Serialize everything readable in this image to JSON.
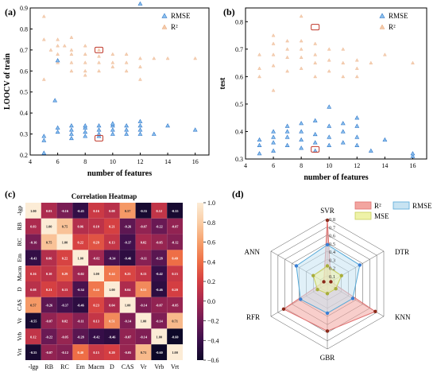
{
  "panels": {
    "a": {
      "label": "(a)"
    },
    "b": {
      "label": "(b)"
    },
    "c": {
      "label": "(c)"
    },
    "d": {
      "label": "(d)"
    }
  },
  "chart_data": [
    {
      "id": "a",
      "type": "scatter",
      "xlabel": "number of features",
      "ylabel": "LOOCV of train",
      "xlim": [
        4,
        17
      ],
      "ylim": [
        0.2,
        0.9
      ],
      "xticks": [
        "4",
        "6",
        "8",
        "10",
        "12",
        "14",
        "16"
      ],
      "yticks": [
        "0.2",
        "0.3",
        "0.4",
        "0.5",
        "0.6",
        "0.7",
        "0.8",
        "0.9"
      ],
      "legend_position": "top-right",
      "colors": {
        "RMSE": "#3a7fd5",
        "R2": "#f0b48a",
        "highlight": "#c0392b"
      },
      "series": [
        {
          "name": "RMSE",
          "marker": "triangle",
          "points": [
            [
              5,
              0.21
            ],
            [
              5,
              0.27
            ],
            [
              5,
              0.29
            ],
            [
              6,
              0.31
            ],
            [
              6,
              0.33
            ],
            [
              7,
              0.28
            ],
            [
              7,
              0.3
            ],
            [
              7,
              0.32
            ],
            [
              7,
              0.34
            ],
            [
              8,
              0.29
            ],
            [
              8,
              0.31
            ],
            [
              8,
              0.33
            ],
            [
              8,
              0.34
            ],
            [
              9,
              0.29
            ],
            [
              9,
              0.3
            ],
            [
              9,
              0.32
            ],
            [
              9,
              0.34
            ],
            [
              10,
              0.3
            ],
            [
              10,
              0.32
            ],
            [
              10,
              0.34
            ],
            [
              10,
              0.35
            ],
            [
              11,
              0.3
            ],
            [
              11,
              0.32
            ],
            [
              11,
              0.34
            ],
            [
              12,
              0.3
            ],
            [
              12,
              0.32
            ],
            [
              12,
              0.34
            ],
            [
              12,
              0.36
            ],
            [
              13,
              0.3
            ],
            [
              14,
              0.34
            ],
            [
              16,
              0.32
            ],
            [
              5.8,
              0.46
            ],
            [
              6,
              0.65
            ],
            [
              12,
              0.92
            ]
          ]
        },
        {
          "name": "R²",
          "marker": "triangle",
          "points": [
            [
              5,
              0.86
            ],
            [
              5,
              0.75
            ],
            [
              5,
              0.56
            ],
            [
              5.5,
              0.7
            ],
            [
              6,
              0.75
            ],
            [
              6,
              0.72
            ],
            [
              6,
              0.68
            ],
            [
              6,
              0.64
            ],
            [
              6.5,
              0.72
            ],
            [
              7,
              0.76
            ],
            [
              7,
              0.7
            ],
            [
              7,
              0.68
            ],
            [
              7,
              0.64
            ],
            [
              7,
              0.6
            ],
            [
              8,
              0.72
            ],
            [
              8,
              0.68
            ],
            [
              8,
              0.64
            ],
            [
              8,
              0.6
            ],
            [
              8,
              0.58
            ],
            [
              9,
              0.7
            ],
            [
              9,
              0.67
            ],
            [
              9,
              0.64
            ],
            [
              9,
              0.6
            ],
            [
              10,
              0.68
            ],
            [
              10,
              0.64
            ],
            [
              10,
              0.62
            ],
            [
              11,
              0.68
            ],
            [
              11,
              0.64
            ],
            [
              11,
              0.6
            ],
            [
              12,
              0.66
            ],
            [
              12,
              0.62
            ],
            [
              12,
              0.56
            ],
            [
              13,
              0.66
            ],
            [
              14,
              0.66
            ],
            [
              16,
              0.66
            ]
          ]
        }
      ],
      "highlights": [
        [
          9,
          0.7
        ],
        [
          9,
          0.28
        ]
      ]
    },
    {
      "id": "b",
      "type": "scatter",
      "xlabel": "number of features",
      "ylabel": "test",
      "xlim": [
        4,
        17
      ],
      "ylim": [
        0.3,
        0.85
      ],
      "xticks": [
        "4",
        "6",
        "8",
        "10",
        "12",
        "14",
        "16"
      ],
      "yticks": [
        "0.3",
        "0.4",
        "0.5",
        "0.6",
        "0.7",
        "0.8"
      ],
      "legend_position": "top-right",
      "colors": {
        "RMSE": "#3a7fd5",
        "R2": "#f0b48a",
        "highlight": "#c0392b"
      },
      "series": [
        {
          "name": "RMSE",
          "marker": "triangle",
          "points": [
            [
              5,
              0.32
            ],
            [
              5,
              0.35
            ],
            [
              5,
              0.37
            ],
            [
              6,
              0.33
            ],
            [
              6,
              0.36
            ],
            [
              6,
              0.38
            ],
            [
              6,
              0.4
            ],
            [
              7,
              0.35
            ],
            [
              7,
              0.38
            ],
            [
              7,
              0.4
            ],
            [
              7,
              0.42
            ],
            [
              8,
              0.34
            ],
            [
              8,
              0.37
            ],
            [
              8,
              0.4
            ],
            [
              8,
              0.43
            ],
            [
              9,
              0.33
            ],
            [
              9,
              0.36
            ],
            [
              9,
              0.39
            ],
            [
              9,
              0.44
            ],
            [
              10,
              0.35
            ],
            [
              10,
              0.38
            ],
            [
              10,
              0.42
            ],
            [
              10,
              0.49
            ],
            [
              11,
              0.36
            ],
            [
              11,
              0.4
            ],
            [
              11,
              0.43
            ],
            [
              12,
              0.35
            ],
            [
              12,
              0.38
            ],
            [
              12,
              0.42
            ],
            [
              12,
              0.45
            ],
            [
              13,
              0.33
            ],
            [
              14,
              0.37
            ],
            [
              16,
              0.31
            ],
            [
              16,
              0.32
            ]
          ]
        },
        {
          "name": "R²",
          "marker": "triangle",
          "points": [
            [
              5,
              0.6
            ],
            [
              5,
              0.63
            ],
            [
              5,
              0.68
            ],
            [
              6,
              0.64
            ],
            [
              6,
              0.68
            ],
            [
              6,
              0.72
            ],
            [
              6,
              0.75
            ],
            [
              7,
              0.62
            ],
            [
              7,
              0.67
            ],
            [
              7,
              0.7
            ],
            [
              7,
              0.73
            ],
            [
              8,
              0.63
            ],
            [
              8,
              0.67
            ],
            [
              8,
              0.7
            ],
            [
              8,
              0.73
            ],
            [
              9,
              0.6
            ],
            [
              9,
              0.65
            ],
            [
              9,
              0.68
            ],
            [
              9,
              0.72
            ],
            [
              10,
              0.62
            ],
            [
              10,
              0.66
            ],
            [
              10,
              0.7
            ],
            [
              11,
              0.6
            ],
            [
              11,
              0.65
            ],
            [
              11,
              0.7
            ],
            [
              12,
              0.6
            ],
            [
              12,
              0.63
            ],
            [
              12,
              0.66
            ],
            [
              13,
              0.65
            ],
            [
              14,
              0.68
            ],
            [
              16,
              0.65
            ],
            [
              8,
              0.82
            ],
            [
              6,
              0.55
            ]
          ]
        }
      ],
      "highlights": [
        [
          9,
          0.78
        ],
        [
          9,
          0.335
        ]
      ]
    },
    {
      "id": "c",
      "type": "heatmap",
      "title": "Correlation Heatmap",
      "labels": [
        "-lgp",
        "RB",
        "RC",
        "Em",
        "Macm",
        "D",
        "CAS",
        "Vr",
        "Vrb",
        "Vrt"
      ],
      "matrix": [
        [
          1.0,
          0.03,
          -0.16,
          -0.43,
          0.16,
          0.08,
          0.57,
          -0.55,
          0.12,
          -0.55
        ],
        [
          0.03,
          1.0,
          0.75,
          0.06,
          0.1,
          0.21,
          -0.26,
          -0.07,
          -0.22,
          -0.07
        ],
        [
          -0.16,
          0.75,
          1.0,
          0.22,
          0.29,
          0.13,
          -0.37,
          0.02,
          -0.05,
          -0.12
        ],
        [
          -0.43,
          0.06,
          0.22,
          1.0,
          -0.02,
          -0.34,
          -0.46,
          -0.11,
          -0.28,
          0.4
        ],
        [
          0.16,
          0.1,
          0.29,
          -0.02,
          1.0,
          0.44,
          0.23,
          0.13,
          -0.42,
          0.15
        ],
        [
          0.08,
          0.21,
          0.13,
          -0.34,
          0.44,
          1.0,
          0.04,
          0.51,
          -0.46,
          0.2
        ],
        [
          0.57,
          -0.26,
          -0.37,
          -0.46,
          0.23,
          0.04,
          1.0,
          -0.14,
          -0.07,
          -0.05
        ],
        [
          -0.55,
          -0.07,
          0.02,
          -0.11,
          0.13,
          0.51,
          -0.14,
          1.0,
          -0.14,
          0.71
        ],
        [
          0.12,
          -0.22,
          -0.05,
          -0.28,
          -0.42,
          -0.46,
          -0.07,
          -0.14,
          1.0,
          -0.6
        ],
        [
          -0.55,
          -0.07,
          -0.12,
          0.4,
          0.15,
          0.2,
          -0.05,
          0.71,
          -0.6,
          1.0
        ]
      ],
      "colorbar": {
        "min": -0.6,
        "max": 1.0,
        "ticks": [
          "1.0",
          "0.8",
          "0.6",
          "0.4",
          "0.2",
          "0.0",
          "−0.2",
          "−0.4",
          "−0.6"
        ]
      }
    },
    {
      "id": "d",
      "type": "radar",
      "axes": [
        "SVR",
        "DTR",
        "KNN",
        "GBR",
        "RFR",
        "ANN"
      ],
      "rlim": [
        0,
        0.8
      ],
      "rticks": [
        "0.1",
        "0.2",
        "0.3",
        "0.4",
        "0.5",
        "0.6",
        "0.7",
        "0.8"
      ],
      "legend_position": "top-right",
      "series": [
        {
          "name": "R²",
          "values": [
            0.78,
            0.05,
            0.68,
            0.58,
            0.62,
            0.05
          ],
          "fill": "#f2a5a0",
          "stroke": "#e07070",
          "marker": "#8b2a1a"
        },
        {
          "name": "RMSE",
          "values": [
            0.48,
            0.46,
            0.36,
            0.36,
            0.38,
            0.44
          ],
          "fill": "#c7e3f2",
          "stroke": "#55a9d8",
          "marker": "#3a7fd5"
        },
        {
          "name": "MSE",
          "values": [
            0.22,
            0.2,
            0.12,
            0.12,
            0.14,
            0.2
          ],
          "fill": "#eef2a8",
          "stroke": "#c9cf5a",
          "marker": "#a8ad3a"
        }
      ]
    }
  ]
}
